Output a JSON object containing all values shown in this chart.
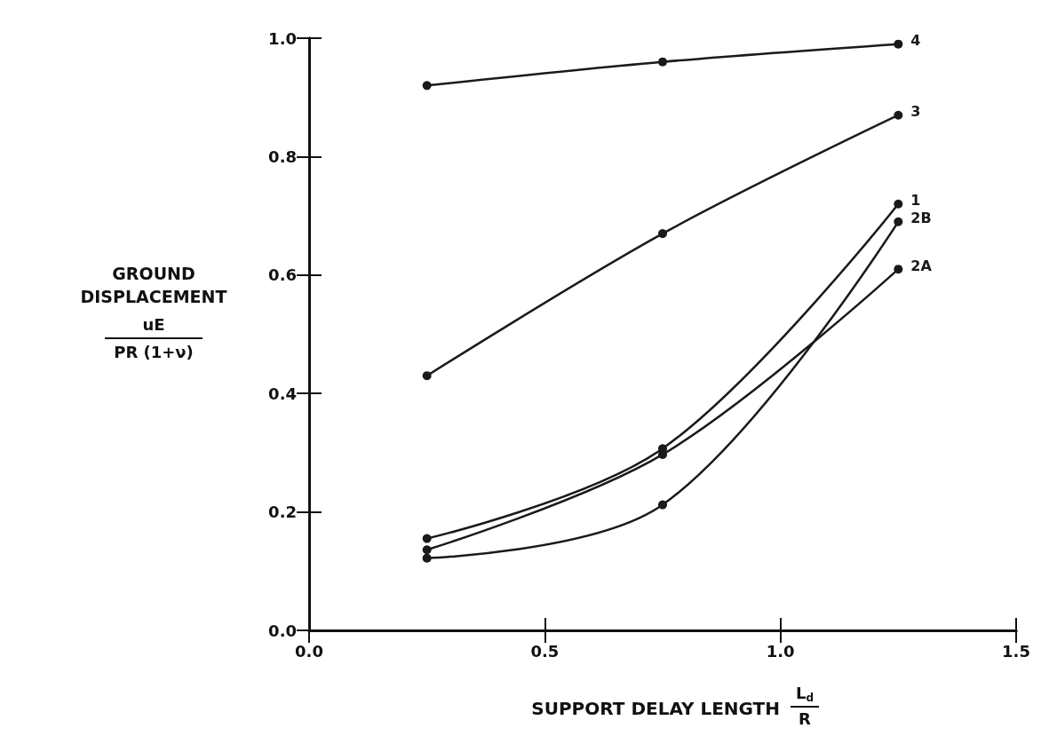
{
  "chart_data": {
    "type": "line",
    "xlabel": "SUPPORT DELAY LENGTH\nL$_{d}$\nR",
    "ylabel": "GROUND\nDISPLACEMENT\nuE\nPR (1+ν)",
    "x": [
      0.25,
      0.75,
      1.25
    ],
    "series": [
      {
        "name": "4",
        "color": "#1a1a1a",
        "values": [
          0.92,
          0.96,
          0.99
        ]
      },
      {
        "name": "3",
        "color": "#1a1a1a",
        "values": [
          0.43,
          0.67,
          0.87
        ]
      },
      {
        "name": "1",
        "color": "#1a1a1a",
        "values": [
          0.155,
          0.307,
          0.72
        ]
      },
      {
        "name": "2B",
        "color": "#1a1a1a",
        "values": [
          0.122,
          0.212,
          0.69
        ]
      },
      {
        "name": "2A",
        "color": "#1a1a1a",
        "values": [
          0.136,
          0.297,
          0.61
        ]
      }
    ],
    "xlim": [
      0,
      1.5
    ],
    "xticks": [
      {
        "value": 0,
        "label": "0.0"
      },
      0.5,
      {
        "value": 1,
        "label": "1.0"
      },
      1.5
    ],
    "ylim": [
      0,
      1
    ],
    "yticks": [
      {
        "value": 0,
        "label": "0.0"
      },
      0.2,
      0.4,
      0.6,
      0.8,
      {
        "value": 1,
        "label": "1.0"
      }
    ],
    "grid": false,
    "legend": false,
    "marker": "circle",
    "line_style": "solid"
  }
}
